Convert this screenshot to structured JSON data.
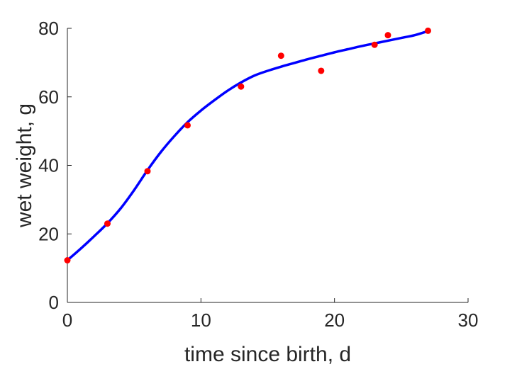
{
  "chart_data": {
    "type": "scatter",
    "xlabel": "time since birth, d",
    "ylabel": "wet weight, g",
    "xlim": [
      0,
      30
    ],
    "ylim": [
      0,
      80
    ],
    "xticks": [
      0,
      10,
      20,
      30
    ],
    "yticks": [
      0,
      20,
      40,
      60,
      80
    ],
    "grid": false,
    "series": [
      {
        "kind": "points",
        "color": "#ff0000",
        "x": [
          0,
          3,
          6,
          9,
          13,
          16,
          19,
          23,
          24,
          27
        ],
        "y": [
          12.3,
          23.0,
          38.3,
          51.7,
          63.0,
          72.0,
          67.6,
          75.2,
          78.0,
          79.3
        ]
      },
      {
        "kind": "fit-line",
        "color": "#0000ff",
        "x": [
          0,
          1,
          2,
          3,
          4,
          5,
          6,
          7,
          8,
          9,
          10,
          11,
          12,
          13,
          14,
          15,
          16,
          17,
          18,
          19,
          20,
          21,
          22,
          23,
          24,
          25,
          26,
          27
        ],
        "y": [
          12.3,
          15.7,
          19.3,
          23.1,
          27.5,
          32.8,
          38.6,
          43.9,
          48.5,
          52.6,
          56.0,
          59.0,
          61.8,
          64.2,
          66.2,
          67.6,
          68.8,
          69.9,
          71.0,
          72.0,
          73.0,
          73.9,
          74.8,
          75.6,
          76.4,
          77.2,
          78.0,
          79.2
        ]
      }
    ]
  }
}
